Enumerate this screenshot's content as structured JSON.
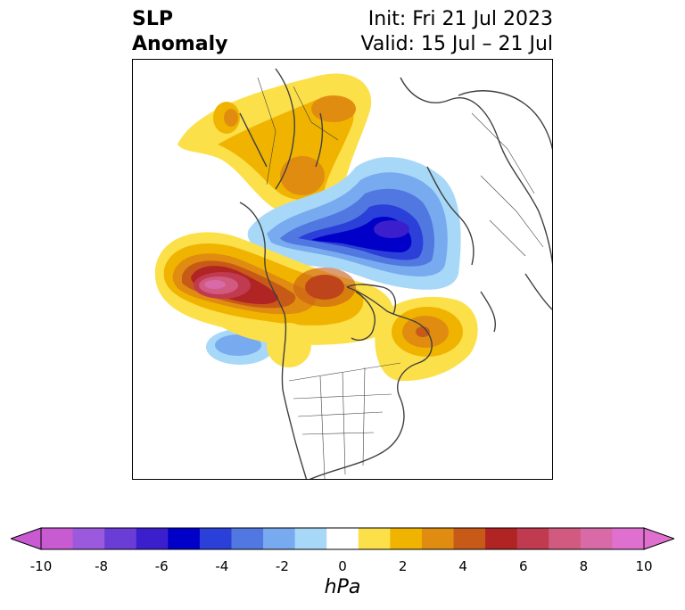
{
  "title": {
    "left_line1": "SLP",
    "left_line2": "Anomaly",
    "right_line1": "Init: Fri 21 Jul 2023",
    "right_line2": "Valid: 15 Jul – 21 Jul"
  },
  "colorbar": {
    "units": "hPa",
    "tick_labels": [
      "-10",
      "-8",
      "-6",
      "-4",
      "-2",
      "0",
      "2",
      "4",
      "6",
      "8",
      "10"
    ],
    "colors": [
      "#c85ad2",
      "#9b59dd",
      "#6a3dd6",
      "#3b1fcc",
      "#0000c8",
      "#2b40d8",
      "#5078e0",
      "#78aaf0",
      "#a8d8f8",
      "#ffffff",
      "#fce04a",
      "#f0b400",
      "#e08c10",
      "#c85a18",
      "#b02424",
      "#c03a50",
      "#d05a80",
      "#d86aa8",
      "#e070d0"
    ]
  },
  "map": {
    "projection": "polar stereographic (North America / Arctic)",
    "features": [
      "coastlines",
      "country borders",
      "state/province borders"
    ]
  }
}
